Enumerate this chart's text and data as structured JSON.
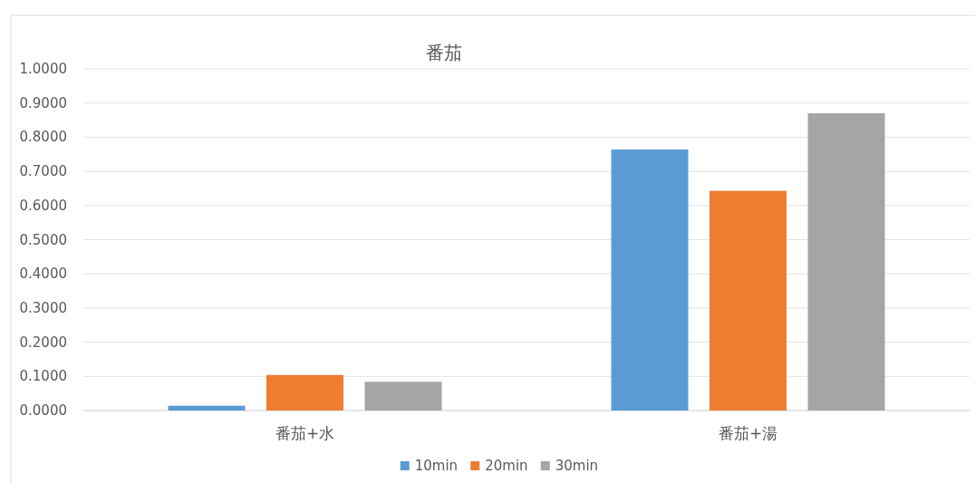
{
  "chart_data": {
    "type": "bar",
    "title": "番茄",
    "categories": [
      "番茄+水",
      "番茄+湯"
    ],
    "series": [
      {
        "name": "10min",
        "color": "#5b9bd5",
        "values": [
          0.014,
          0.764
        ]
      },
      {
        "name": "20min",
        "color": "#ed7d31",
        "values": [
          0.104,
          0.643
        ]
      },
      {
        "name": "30min",
        "color": "#a5a5a5",
        "values": [
          0.084,
          0.87
        ]
      }
    ],
    "ylim": [
      0,
      1
    ],
    "yticks": [
      {
        "value": 0,
        "label": "0.0000"
      },
      {
        "value": 0.1,
        "label": "0.1000"
      },
      {
        "value": 0.2,
        "label": "0.2000"
      },
      {
        "value": 0.3,
        "label": "0.3000"
      },
      {
        "value": 0.4,
        "label": "0.4000"
      },
      {
        "value": 0.5,
        "label": "0.5000"
      },
      {
        "value": 0.6,
        "label": "0.6000"
      },
      {
        "value": 0.7,
        "label": "0.7000"
      },
      {
        "value": 0.8,
        "label": "0.8000"
      },
      {
        "value": 0.9,
        "label": "0.9000"
      },
      {
        "value": 1,
        "label": "1.0000"
      }
    ],
    "grid": "y",
    "legend": "bottom"
  }
}
